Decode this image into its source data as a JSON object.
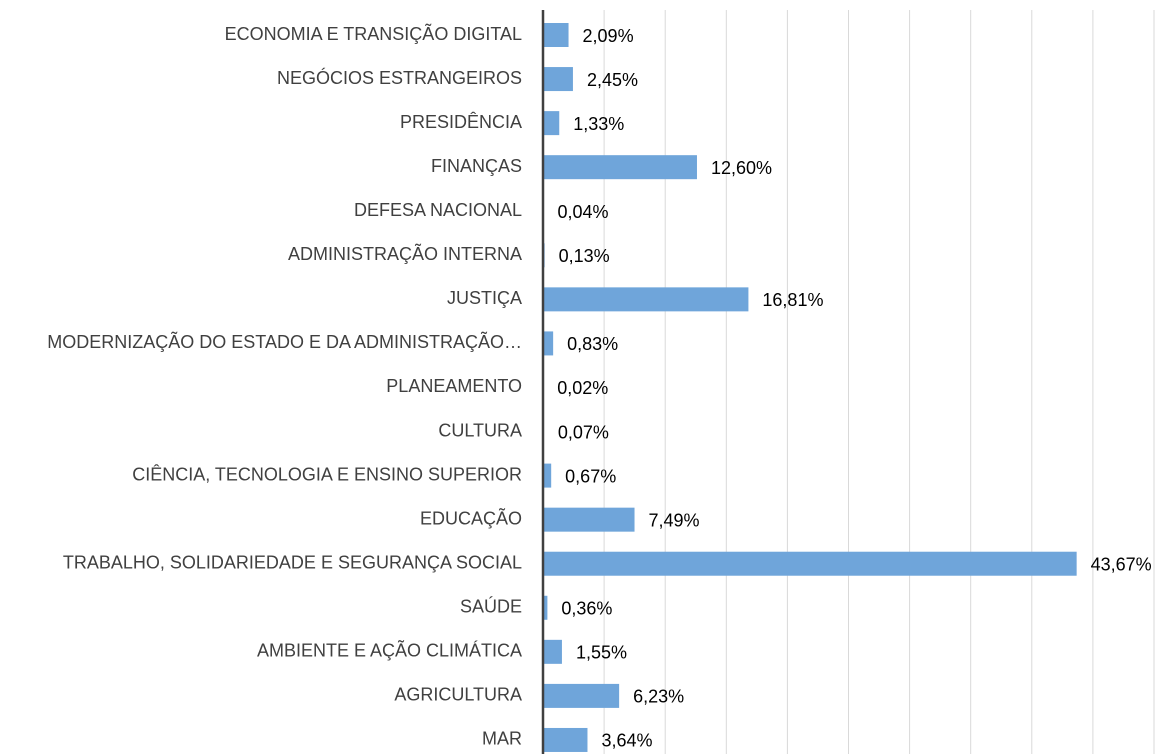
{
  "chart_data": {
    "type": "bar",
    "orientation": "horizontal",
    "categories": [
      "ECONOMIA E TRANSIÇÃO DIGITAL",
      "NEGÓCIOS ESTRANGEIROS",
      "PRESIDÊNCIA",
      "FINANÇAS",
      "DEFESA NACIONAL",
      "ADMINISTRAÇÃO INTERNA",
      "JUSTIÇA",
      "MODERNIZAÇÃO DO ESTADO E DA ADMINISTRAÇÃO…",
      "PLANEAMENTO",
      "CULTURA",
      "CIÊNCIA, TECNOLOGIA E ENSINO SUPERIOR",
      "EDUCAÇÃO",
      "TRABALHO, SOLIDARIEDADE E SEGURANÇA SOCIAL",
      "SAÚDE",
      "AMBIENTE E AÇÃO CLIMÁTICA",
      "AGRICULTURA",
      "MAR"
    ],
    "values": [
      2.09,
      2.45,
      1.33,
      12.6,
      0.04,
      0.13,
      16.81,
      0.83,
      0.02,
      0.07,
      0.67,
      7.49,
      43.67,
      0.36,
      1.55,
      6.23,
      3.64
    ],
    "value_labels": [
      "2,09%",
      "2,45%",
      "1,33%",
      "12,60%",
      "0,04%",
      "0,13%",
      "16,81%",
      "0,83%",
      "0,02%",
      "0,07%",
      "0,67%",
      "7,49%",
      "43,67%",
      "0,36%",
      "1,55%",
      "6,23%",
      "3,64%"
    ],
    "color": "#6fa5da",
    "xlim": [
      0,
      50
    ],
    "xticks": [
      0,
      5,
      10,
      15,
      20,
      25,
      30,
      35,
      40,
      45,
      50
    ],
    "grid": true
  }
}
